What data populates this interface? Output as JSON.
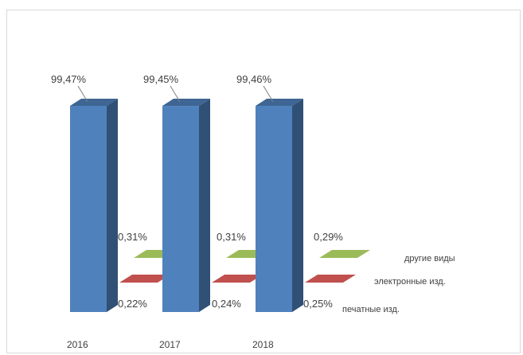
{
  "chart_data": {
    "type": "bar",
    "categories": [
      "2016",
      "2017",
      "2018"
    ],
    "series": [
      {
        "name": "печатные изд.",
        "values": [
          99.47,
          99.45,
          99.46
        ],
        "labels": [
          "99,47%",
          "99,45%",
          "99,46%"
        ],
        "color": "#4f81bd"
      },
      {
        "name": "электронные изд.",
        "values": [
          0.22,
          0.24,
          0.25
        ],
        "labels": [
          "0,22%",
          "0,24%",
          "0,25%"
        ],
        "color": "#c0504d"
      },
      {
        "name": "другие виды",
        "values": [
          0.31,
          0.31,
          0.29
        ],
        "labels": [
          "0,31%",
          "0,31%",
          "0,29%"
        ],
        "color": "#9bbb59"
      }
    ],
    "grid": false,
    "legend": "none"
  }
}
